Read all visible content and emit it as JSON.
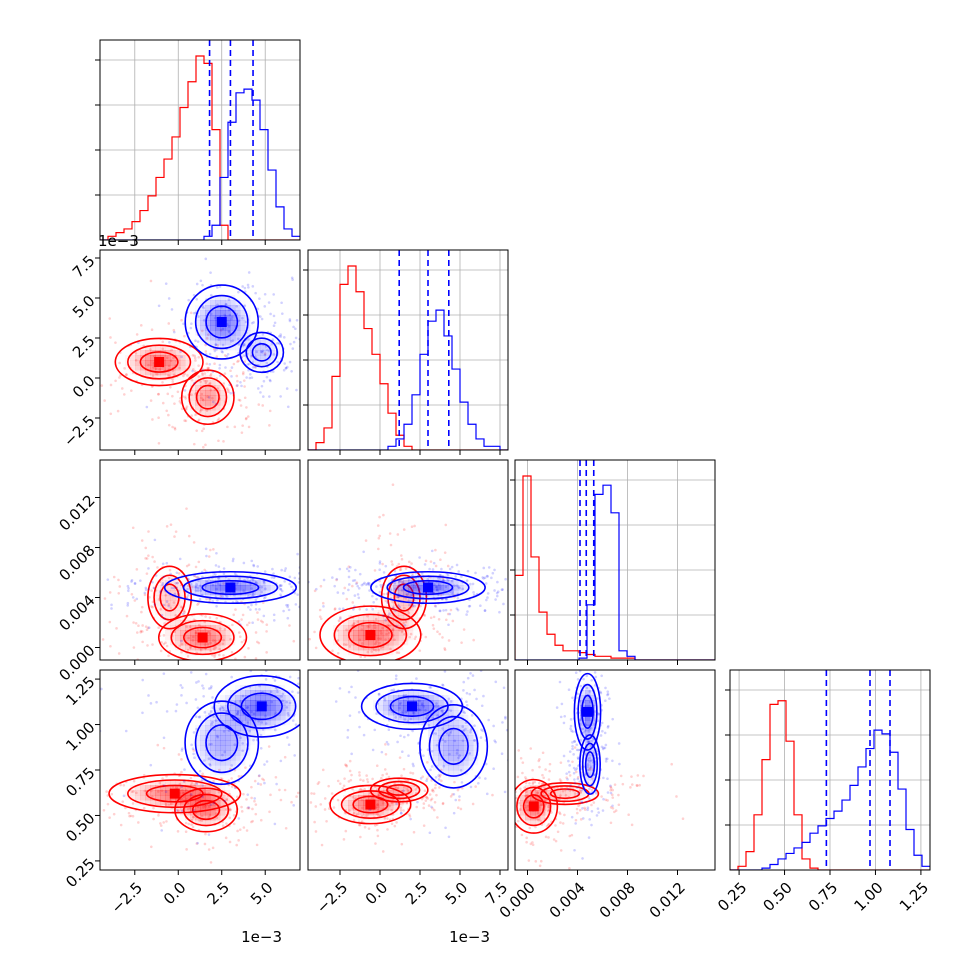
{
  "chart_data": {
    "type": "corner",
    "n_params": 4,
    "series": [
      {
        "name": "",
        "color": "#ff0000"
      },
      {
        "name": "",
        "color": "#0000ff"
      }
    ],
    "axes": [
      {
        "range": [
          -0.0045,
          0.007
        ],
        "ticks": [
          -0.0025,
          0.0,
          0.0025,
          0.005
        ],
        "tick_labels": [
          "−2.5",
          "0.0",
          "2.5",
          "5.0"
        ],
        "offset_label": "1e−3"
      },
      {
        "range": [
          -0.0045,
          0.008
        ],
        "ticks": [
          -0.0025,
          0.0,
          0.0025,
          0.005,
          0.0075
        ],
        "tick_labels": [
          "−2.5",
          "0.0",
          "2.5",
          "5.0",
          "7.5"
        ],
        "offset_label": "1e−3"
      },
      {
        "range": [
          -0.001,
          0.015
        ],
        "ticks": [
          0.0,
          0.004,
          0.008,
          0.012
        ],
        "tick_labels": [
          "0.000",
          "0.004",
          "0.008",
          "0.012"
        ],
        "offset_label": ""
      },
      {
        "range": [
          0.2,
          1.3
        ],
        "ticks": [
          0.25,
          0.5,
          0.75,
          1.0,
          1.25
        ],
        "tick_labels": [
          "0.25",
          "0.50",
          "0.75",
          "1.00",
          "1.25"
        ],
        "offset_label": ""
      }
    ],
    "quantiles": [
      [
        0.0018,
        0.003,
        0.0043
      ],
      [
        0.0012,
        0.003,
        0.0043
      ],
      [
        0.0042,
        0.0047,
        0.0053
      ],
      [
        0.73,
        0.97,
        1.08
      ]
    ],
    "histograms": [
      {
        "edges": [
          -0.0045,
          0.007
        ],
        "red": [
          0,
          2,
          4,
          6,
          10,
          16,
          24,
          34,
          44,
          56,
          72,
          86,
          100,
          96,
          60,
          8,
          0,
          0,
          0,
          0,
          0,
          0,
          0,
          0,
          0
        ],
        "blue": [
          0,
          0,
          0,
          0,
          0,
          0,
          0,
          0,
          0,
          0,
          0,
          0,
          0,
          2,
          8,
          34,
          64,
          80,
          82,
          76,
          60,
          38,
          18,
          6,
          2
        ]
      },
      {
        "edges": [
          -0.0045,
          0.008
        ],
        "red": [
          0,
          4,
          12,
          40,
          90,
          100,
          86,
          66,
          52,
          36,
          20,
          8,
          2,
          0,
          0,
          0,
          0,
          0,
          0,
          0,
          0,
          0,
          0,
          0,
          0
        ],
        "blue": [
          0,
          0,
          0,
          0,
          0,
          0,
          0,
          0,
          0,
          0,
          2,
          6,
          14,
          30,
          52,
          70,
          76,
          62,
          44,
          26,
          14,
          6,
          2,
          2,
          0
        ]
      },
      {
        "edges": [
          -0.001,
          0.015
        ],
        "red": [
          46,
          100,
          56,
          26,
          14,
          8,
          5,
          5,
          4,
          3,
          2,
          2,
          1,
          1,
          1,
          0,
          0,
          0,
          0,
          0,
          0,
          0,
          0,
          0,
          0
        ],
        "blue": [
          0,
          0,
          0,
          0,
          0,
          0,
          0,
          0,
          1,
          30,
          90,
          95,
          80,
          5,
          2,
          0,
          0,
          0,
          0,
          0,
          0,
          0,
          0,
          0,
          0
        ]
      },
      {
        "edges": [
          0.2,
          1.3
        ],
        "red": [
          0,
          2,
          10,
          30,
          60,
          90,
          92,
          70,
          30,
          6,
          1,
          0,
          0,
          0,
          0,
          0,
          0,
          0,
          0,
          0,
          0,
          0,
          0,
          0,
          0
        ],
        "blue": [
          0,
          0,
          0,
          0,
          1,
          3,
          6,
          9,
          12,
          15,
          20,
          24,
          28,
          32,
          38,
          46,
          56,
          66,
          76,
          74,
          64,
          44,
          22,
          8,
          2
        ]
      }
    ],
    "contours": [
      {
        "row": 1,
        "col": 0,
        "red": {
          "x": 0.0005,
          "y": 0.0,
          "blobs": [
            [
              -0.0011,
              0.001,
              0.0012,
              0.0007,
              1.0
            ],
            [
              0.0017,
              -0.0012,
              0.0008,
              0.0009,
              0.8
            ]
          ]
        },
        "blue": {
          "x": 0.003,
          "y": 0.003,
          "blobs": [
            [
              0.0025,
              0.0035,
              0.001,
              0.0011,
              1.0
            ],
            [
              0.0048,
              0.0016,
              0.0008,
              0.0008,
              0.55
            ]
          ]
        }
      },
      {
        "row": 2,
        "col": 0,
        "red": {
          "x": 0.0,
          "y": 0.0025,
          "blobs": [
            [
              0.0014,
              0.0008,
              0.0012,
              0.0009,
              1.0
            ],
            [
              -0.0005,
              0.004,
              0.0008,
              0.0016,
              0.55
            ]
          ]
        },
        "blue": {
          "x": 0.003,
          "y": 0.0048,
          "blobs": [
            [
              0.003,
              0.0048,
              0.0018,
              0.0006,
              1.0
            ]
          ]
        }
      },
      {
        "row": 2,
        "col": 1,
        "red": {
          "x": 0.0,
          "y": 0.0015,
          "blobs": [
            [
              -0.0006,
              0.001,
              0.0015,
              0.0011,
              1.0
            ],
            [
              0.0015,
              0.004,
              0.0009,
              0.0016,
              0.55
            ]
          ]
        },
        "blue": {
          "x": 0.003,
          "y": 0.0048,
          "blobs": [
            [
              0.003,
              0.0048,
              0.0017,
              0.0006,
              1.0
            ]
          ]
        }
      },
      {
        "row": 3,
        "col": 0,
        "red": {
          "x": 0.0005,
          "y": 0.58,
          "blobs": [
            [
              -0.0002,
              0.62,
              0.0018,
              0.05,
              1.0
            ],
            [
              0.0016,
              0.53,
              0.0009,
              0.06,
              0.9
            ]
          ]
        },
        "blue": {
          "x": 0.0035,
          "y": 0.95,
          "blobs": [
            [
              0.0048,
              1.1,
              0.0013,
              0.08,
              1.0
            ],
            [
              0.0025,
              0.9,
              0.0012,
              0.13,
              0.7
            ]
          ]
        }
      },
      {
        "row": 3,
        "col": 1,
        "red": {
          "x": 0.0,
          "y": 0.58,
          "blobs": [
            [
              -0.0006,
              0.56,
              0.0012,
              0.05,
              1.0
            ],
            [
              0.0012,
              0.64,
              0.0011,
              0.04,
              0.6
            ]
          ]
        },
        "blue": {
          "x": 0.0035,
          "y": 0.95,
          "blobs": [
            [
              0.002,
              1.1,
              0.0015,
              0.06,
              1.0
            ],
            [
              0.0046,
              0.88,
              0.0012,
              0.13,
              0.7
            ]
          ]
        }
      },
      {
        "row": 3,
        "col": 2,
        "red": {
          "x": 0.0015,
          "y": 0.58,
          "blobs": [
            [
              0.0005,
              0.55,
              0.0009,
              0.07,
              1.0
            ],
            [
              0.003,
              0.62,
              0.0018,
              0.04,
              0.5
            ]
          ]
        },
        "blue": {
          "x": 0.0048,
          "y": 0.9,
          "blobs": [
            [
              0.0048,
              1.07,
              0.0005,
              0.1,
              1.0
            ],
            [
              0.005,
              0.78,
              0.0005,
              0.1,
              0.6
            ]
          ]
        }
      }
    ]
  }
}
